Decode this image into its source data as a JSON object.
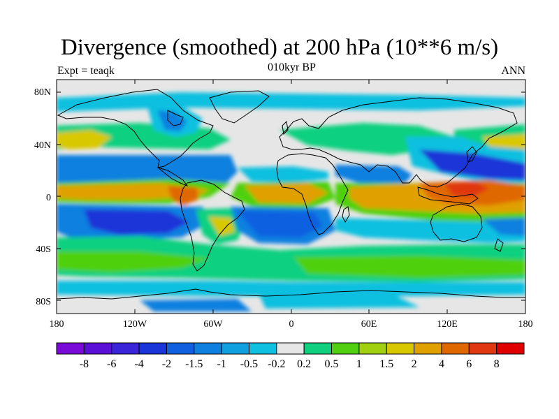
{
  "title": "Divergence (smoothed) at 200 hPa (10**6 m/s)",
  "subtitle_left": "Expt = teaqk",
  "subtitle_center": "010kyr BP",
  "subtitle_right": "ANN",
  "y_tick_labels": [
    "80N",
    "40N",
    "0",
    "40S",
    "80S"
  ],
  "x_tick_labels": [
    "180",
    "120W",
    "60W",
    "0",
    "60E",
    "120E",
    "180"
  ],
  "colorbar": {
    "labels": [
      "-8",
      "-6",
      "-4",
      "-2",
      "-1.5",
      "-1",
      "-0.5",
      "-0.2",
      "0.2",
      "0.5",
      "1",
      "1.5",
      "2",
      "4",
      "6",
      "8"
    ],
    "colors": [
      "#7a0ad8",
      "#5b10d8",
      "#3a26d8",
      "#1a36d8",
      "#1060e0",
      "#1080e0",
      "#10a0e0",
      "#10c0e0",
      "#e6e6e6",
      "#10d080",
      "#50d010",
      "#a0d010",
      "#d8c800",
      "#e0a000",
      "#e06800",
      "#e03810",
      "#e00000"
    ]
  },
  "field_colors": {
    "bg": "#e6e6e6",
    "sky": "#10c0e0",
    "mid": "#10a0e0",
    "blue": "#1080e0",
    "dblue": "#1060e0",
    "navy": "#1a36d8",
    "green": "#10d080",
    "lime": "#50d010",
    "yg": "#a0d010",
    "yellow": "#d8c800",
    "orange": "#e0a000",
    "dorange": "#e06800",
    "red": "#e03810"
  }
}
